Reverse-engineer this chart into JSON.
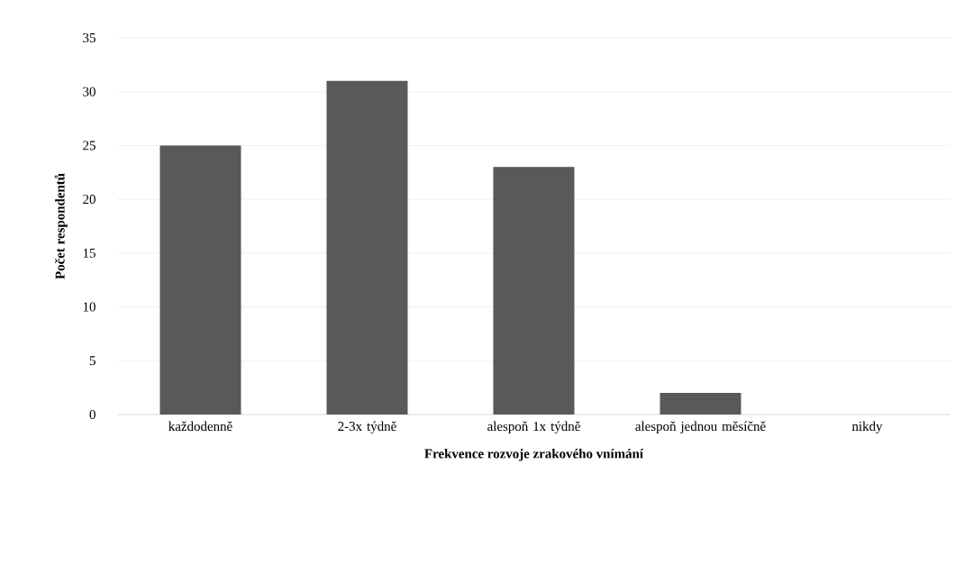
{
  "chart_data": {
    "type": "bar",
    "xlabel": "Frekvence rozvoje zrakového vnímání",
    "ylabel": "Počet respondentů",
    "categories": [
      "každodenně",
      "2-3x týdně",
      "alespoň 1x týdně",
      "alespoň jednou měsíčně",
      "nikdy"
    ],
    "values": [
      25,
      31,
      23,
      2,
      0
    ],
    "color": "#595959",
    "ylim": [
      0,
      35
    ],
    "yticks": [
      0,
      5,
      10,
      15,
      20,
      25,
      30,
      35
    ],
    "grid": "y"
  }
}
